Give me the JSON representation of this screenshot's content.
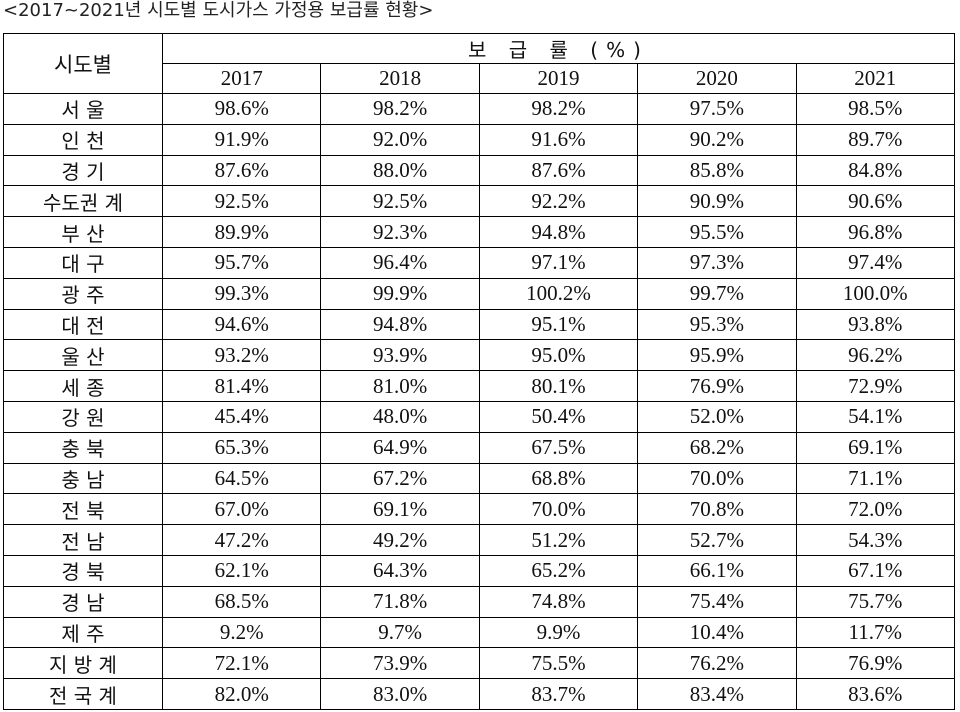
{
  "title": "<2017~2021년 시도별 도시가스 가정용 보급률 현황>",
  "table": {
    "corner_header": "시도별",
    "group_header": "보 급 률 (%)",
    "years": [
      "2017",
      "2018",
      "2019",
      "2020",
      "2021"
    ],
    "rows": [
      {
        "region": "서 울",
        "values": [
          "98.6%",
          "98.2%",
          "98.2%",
          "97.5%",
          "98.5%"
        ]
      },
      {
        "region": "인 천",
        "values": [
          "91.9%",
          "92.0%",
          "91.6%",
          "90.2%",
          "89.7%"
        ]
      },
      {
        "region": "경 기",
        "values": [
          "87.6%",
          "88.0%",
          "87.6%",
          "85.8%",
          "84.8%"
        ]
      },
      {
        "region": "수도권 계",
        "values": [
          "92.5%",
          "92.5%",
          "92.2%",
          "90.9%",
          "90.6%"
        ]
      },
      {
        "region": "부 산",
        "values": [
          "89.9%",
          "92.3%",
          "94.8%",
          "95.5%",
          "96.8%"
        ]
      },
      {
        "region": "대 구",
        "values": [
          "95.7%",
          "96.4%",
          "97.1%",
          "97.3%",
          "97.4%"
        ]
      },
      {
        "region": "광 주",
        "values": [
          "99.3%",
          "99.9%",
          "100.2%",
          "99.7%",
          "100.0%"
        ]
      },
      {
        "region": "대 전",
        "values": [
          "94.6%",
          "94.8%",
          "95.1%",
          "95.3%",
          "93.8%"
        ]
      },
      {
        "region": "울 산",
        "values": [
          "93.2%",
          "93.9%",
          "95.0%",
          "95.9%",
          "96.2%"
        ]
      },
      {
        "region": "세 종",
        "values": [
          "81.4%",
          "81.0%",
          "80.1%",
          "76.9%",
          "72.9%"
        ]
      },
      {
        "region": "강 원",
        "values": [
          "45.4%",
          "48.0%",
          "50.4%",
          "52.0%",
          "54.1%"
        ]
      },
      {
        "region": "충 북",
        "values": [
          "65.3%",
          "64.9%",
          "67.5%",
          "68.2%",
          "69.1%"
        ]
      },
      {
        "region": "충 남",
        "values": [
          "64.5%",
          "67.2%",
          "68.8%",
          "70.0%",
          "71.1%"
        ]
      },
      {
        "region": "전 북",
        "values": [
          "67.0%",
          "69.1%",
          "70.0%",
          "70.8%",
          "72.0%"
        ]
      },
      {
        "region": "전 남",
        "values": [
          "47.2%",
          "49.2%",
          "51.2%",
          "52.7%",
          "54.3%"
        ]
      },
      {
        "region": "경 북",
        "values": [
          "62.1%",
          "64.3%",
          "65.2%",
          "66.1%",
          "67.1%"
        ]
      },
      {
        "region": "경 남",
        "values": [
          "68.5%",
          "71.8%",
          "74.8%",
          "75.4%",
          "75.7%"
        ]
      },
      {
        "region": "제 주",
        "values": [
          "9.2%",
          "9.7%",
          "9.9%",
          "10.4%",
          "11.7%"
        ]
      },
      {
        "region": "지 방 계",
        "values": [
          "72.1%",
          "73.9%",
          "75.5%",
          "76.2%",
          "76.9%"
        ]
      },
      {
        "region": "전 국 계",
        "values": [
          "82.0%",
          "83.0%",
          "83.7%",
          "83.4%",
          "83.6%"
        ]
      }
    ]
  }
}
